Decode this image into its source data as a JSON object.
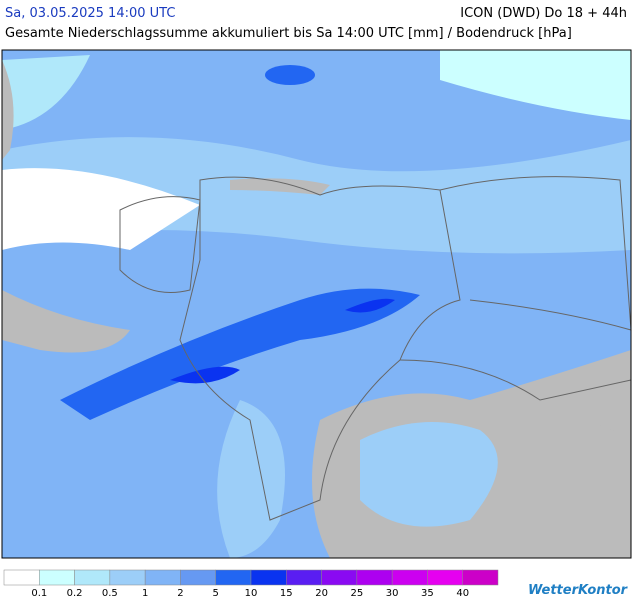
{
  "header": {
    "datetime": "Sa, 03.05.2025 14:00 UTC",
    "model": "ICON (DWD) Do 18 + 44h",
    "subtitle": "Gesamte Niederschlagssumme akkumuliert bis Sa 14:00 UTC [mm] / Bodendruck [hPa]"
  },
  "legend": {
    "colors": [
      "#ffffff",
      "#ccffff",
      "#b0e8fa",
      "#9ccef8",
      "#80b4f6",
      "#6699f2",
      "#2266f2",
      "#0a33f0",
      "#5a1ef2",
      "#8a0af2",
      "#ad00f0",
      "#cc00f0",
      "#e600f0",
      "#cc00c8"
    ],
    "labels": [
      "0.1",
      "0.2",
      "0.5",
      "1",
      "2",
      "5",
      "10",
      "15",
      "20",
      "25",
      "30",
      "35",
      "40"
    ]
  },
  "footer": {
    "logo": "WetterKontor"
  }
}
